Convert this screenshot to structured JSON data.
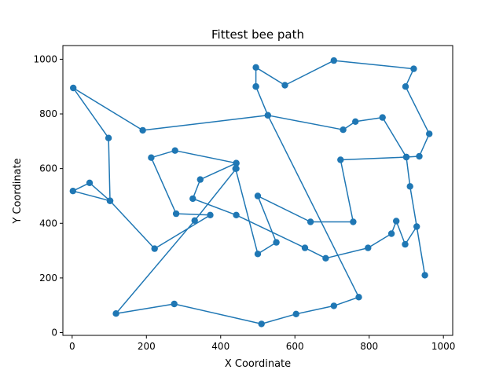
{
  "chart_data": {
    "type": "line",
    "title": "Fittest bee path",
    "xlabel": "X Coordinate",
    "ylabel": "Y Coordinate",
    "xlim": [
      -25,
      1025
    ],
    "ylim": [
      -10,
      1050
    ],
    "xticks": [
      0,
      200,
      400,
      600,
      800,
      1000
    ],
    "yticks": [
      0,
      200,
      400,
      600,
      800,
      1000
    ],
    "grid": false,
    "legend": false,
    "colors": {
      "series": "#1f77b4"
    },
    "series": [
      {
        "marker": "circle",
        "points": [
          [
            495,
            900
          ],
          [
            495,
            970
          ],
          [
            573,
            905
          ],
          [
            705,
            995
          ],
          [
            920,
            965
          ],
          [
            898,
            900
          ],
          [
            962,
            727
          ],
          [
            935,
            645
          ],
          [
            900,
            642
          ],
          [
            723,
            632
          ],
          [
            757,
            405
          ],
          [
            642,
            405
          ],
          [
            500,
            500
          ],
          [
            550,
            330
          ],
          [
            500,
            288
          ],
          [
            440,
            600
          ],
          [
            442,
            620
          ],
          [
            345,
            560
          ],
          [
            325,
            490
          ],
          [
            442,
            430
          ],
          [
            627,
            310
          ],
          [
            683,
            272
          ],
          [
            797,
            310
          ],
          [
            860,
            362
          ],
          [
            873,
            408
          ],
          [
            897,
            323
          ],
          [
            928,
            388
          ],
          [
            950,
            210
          ],
          [
            910,
            535
          ],
          [
            900,
            642
          ],
          [
            836,
            787
          ],
          [
            763,
            772
          ],
          [
            730,
            742
          ],
          [
            527,
            795
          ],
          [
            190,
            740
          ],
          [
            3,
            895
          ],
          [
            98,
            712
          ],
          [
            102,
            482
          ],
          [
            47,
            548
          ],
          [
            2,
            518
          ],
          [
            102,
            482
          ],
          [
            222,
            307
          ],
          [
            372,
            430
          ],
          [
            280,
            435
          ],
          [
            213,
            640
          ],
          [
            277,
            666
          ],
          [
            442,
            620
          ],
          [
            442,
            600
          ],
          [
            330,
            410
          ],
          [
            118,
            70
          ],
          [
            275,
            105
          ],
          [
            510,
            32
          ],
          [
            603,
            68
          ],
          [
            705,
            98
          ],
          [
            772,
            130
          ],
          [
            527,
            795
          ],
          [
            495,
            900
          ]
        ]
      }
    ]
  }
}
